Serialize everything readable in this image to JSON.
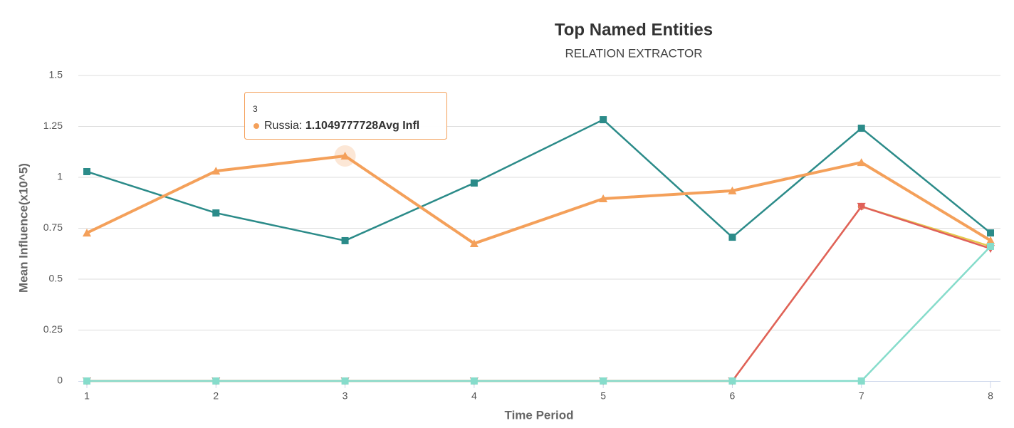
{
  "chart_data": {
    "type": "line",
    "title": "Top Named Entities",
    "subtitle": "RELATION EXTRACTOR",
    "x_label": "Time Period",
    "y_label": "Mean Influence(x10^5)",
    "x": [
      1,
      2,
      3,
      4,
      5,
      6,
      7,
      8
    ],
    "xlim": [
      1,
      8
    ],
    "xticks": [
      1,
      2,
      3,
      4,
      5,
      6,
      7,
      8
    ],
    "ylim": [
      0,
      1.5
    ],
    "yticks": [
      0,
      0.25,
      0.5,
      0.75,
      1,
      1.25,
      1.5
    ],
    "grid": true,
    "series": [
      {
        "color": "#2b8b89",
        "marker": "square",
        "values": [
          1.028,
          0.825,
          0.689,
          0.972,
          1.283,
          0.706,
          1.241,
          0.727
        ]
      },
      {
        "name": "Russia",
        "color": "#f4a05a",
        "marker": "triangle",
        "values": [
          0.727,
          1.031,
          1.1049777728,
          0.675,
          0.895,
          0.934,
          1.073,
          0.69
        ]
      },
      {
        "color": "#e6c84e",
        "marker": "circle",
        "values": [
          0,
          0,
          0,
          0,
          0,
          0,
          0.857,
          0.661
        ]
      },
      {
        "color": "#e0605a",
        "marker": "triangle-down",
        "values": [
          0,
          0,
          0,
          0,
          0,
          0,
          0.857,
          0.65
        ]
      },
      {
        "color": "#86dccb",
        "marker": "square",
        "values": [
          0,
          0,
          0,
          0,
          0,
          0,
          0,
          0.661
        ]
      }
    ],
    "tooltip": {
      "label": "Russia:",
      "suffix": "Avg Infl"
    }
  }
}
